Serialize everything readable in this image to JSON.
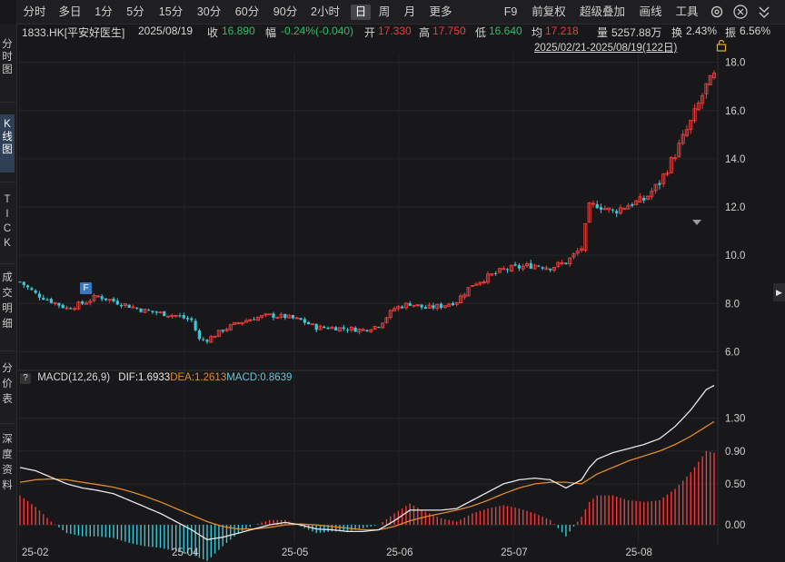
{
  "toolbar": {
    "items": [
      "分时",
      "多日",
      "1分",
      "5分",
      "15分",
      "30分",
      "60分",
      "90分",
      "2小时",
      "日",
      "周",
      "月",
      "更多"
    ],
    "selected": "日",
    "right_items": [
      "F9",
      "前复权",
      "超级叠加",
      "画线",
      "工具"
    ]
  },
  "sidebar": {
    "items": [
      "分时图",
      "K线图",
      "TICK",
      "成交明细",
      "分价表",
      "深度资料"
    ],
    "selected": "K线图"
  },
  "quote": {
    "symbol": "1833.HK[平安好医生]",
    "date": "2025/08/19",
    "close_label": "收",
    "close": "16.890",
    "change_label": "幅",
    "change": "-0.24%(-0.040)",
    "open_label": "开",
    "open": "17.330",
    "high_label": "高",
    "high": "17.750",
    "low_label": "低",
    "low": "16.640",
    "avg_label": "均",
    "avg": "17.218",
    "volume_label": "量",
    "volume": "5257.88万",
    "turnover_label": "换",
    "turnover": "2.43%",
    "amplitude_label": "振",
    "amplitude": "6.56%"
  },
  "range_text": "2025/02/21-2025/08/19(122日)",
  "marker_label": "F",
  "macd": {
    "help": "?",
    "title": "MACD(12,26,9)",
    "dif": "DIF:1.6933",
    "dea": "DEA:1.2613",
    "macd": "MACD:0.8639"
  },
  "colors": {
    "up": "#ef3b3b",
    "down": "#3ec6d6",
    "dif": "#e8e8e8",
    "dea": "#e08a2c",
    "bg": "#18181a"
  },
  "chart_data": {
    "type": "candlestick",
    "price_axis": {
      "ticks": [
        6.0,
        8.0,
        10.0,
        12.0,
        14.0,
        16.0,
        18.0
      ],
      "labels": [
        "6.0",
        "8.0",
        "10.0",
        "12.0",
        "14.0",
        "16.0",
        "18.0"
      ]
    },
    "x_labels": [
      "25-02",
      "25-04",
      "25-05",
      "25-06",
      "25-07",
      "25-08"
    ],
    "macd_axis": {
      "ticks": [
        0,
        0.5,
        0.9,
        1.3
      ],
      "labels": [
        "0.00",
        "0.50",
        "0.90",
        "1.30"
      ]
    },
    "price_path": [
      [
        0,
        8.9
      ],
      [
        4,
        8.4
      ],
      [
        8,
        8.1
      ],
      [
        12,
        7.8
      ],
      [
        16,
        8.0
      ],
      [
        20,
        8.3
      ],
      [
        24,
        8.1
      ],
      [
        28,
        7.9
      ],
      [
        32,
        7.7
      ],
      [
        36,
        7.6
      ],
      [
        40,
        7.5
      ],
      [
        44,
        7.3
      ],
      [
        46,
        6.5
      ],
      [
        48,
        6.5
      ],
      [
        52,
        6.9
      ],
      [
        56,
        7.2
      ],
      [
        60,
        7.4
      ],
      [
        64,
        7.5
      ],
      [
        68,
        7.45
      ],
      [
        72,
        7.3
      ],
      [
        76,
        7.0
      ],
      [
        80,
        7.0
      ],
      [
        84,
        6.95
      ],
      [
        88,
        6.9
      ],
      [
        92,
        7.1
      ],
      [
        96,
        7.8
      ],
      [
        100,
        8.0
      ],
      [
        104,
        7.8
      ],
      [
        108,
        7.9
      ],
      [
        112,
        8.1
      ],
      [
        116,
        8.8
      ],
      [
        120,
        9.1
      ],
      [
        124,
        9.4
      ],
      [
        128,
        9.5
      ],
      [
        132,
        9.6
      ],
      [
        136,
        9.5
      ],
      [
        140,
        9.7
      ],
      [
        144,
        10.3
      ],
      [
        146,
        12.0
      ],
      [
        148,
        12.1
      ],
      [
        152,
        11.8
      ],
      [
        156,
        12.1
      ],
      [
        160,
        12.3
      ],
      [
        164,
        13.0
      ],
      [
        168,
        14.2
      ],
      [
        172,
        15.5
      ],
      [
        176,
        17.0
      ],
      [
        178,
        17.4
      ]
    ],
    "dif_path": [
      [
        0,
        0.7
      ],
      [
        4,
        0.66
      ],
      [
        8,
        0.58
      ],
      [
        12,
        0.5
      ],
      [
        16,
        0.45
      ],
      [
        20,
        0.42
      ],
      [
        24,
        0.38
      ],
      [
        28,
        0.3
      ],
      [
        32,
        0.22
      ],
      [
        36,
        0.14
      ],
      [
        40,
        0.04
      ],
      [
        44,
        -0.06
      ],
      [
        48,
        -0.18
      ],
      [
        52,
        -0.15
      ],
      [
        56,
        -0.1
      ],
      [
        60,
        -0.05
      ],
      [
        64,
        0.0
      ],
      [
        68,
        0.03
      ],
      [
        72,
        0.0
      ],
      [
        76,
        -0.05
      ],
      [
        80,
        -0.06
      ],
      [
        84,
        -0.08
      ],
      [
        88,
        -0.08
      ],
      [
        92,
        -0.06
      ],
      [
        96,
        0.05
      ],
      [
        100,
        0.18
      ],
      [
        104,
        0.18
      ],
      [
        108,
        0.18
      ],
      [
        112,
        0.2
      ],
      [
        116,
        0.3
      ],
      [
        120,
        0.4
      ],
      [
        124,
        0.5
      ],
      [
        128,
        0.55
      ],
      [
        132,
        0.57
      ],
      [
        136,
        0.55
      ],
      [
        140,
        0.45
      ],
      [
        144,
        0.55
      ],
      [
        146,
        0.7
      ],
      [
        148,
        0.8
      ],
      [
        152,
        0.88
      ],
      [
        156,
        0.93
      ],
      [
        160,
        0.98
      ],
      [
        164,
        1.05
      ],
      [
        168,
        1.2
      ],
      [
        172,
        1.4
      ],
      [
        176,
        1.65
      ],
      [
        178,
        1.7
      ]
    ],
    "dea_path": [
      [
        0,
        0.52
      ],
      [
        4,
        0.55
      ],
      [
        8,
        0.56
      ],
      [
        12,
        0.55
      ],
      [
        16,
        0.52
      ],
      [
        20,
        0.49
      ],
      [
        24,
        0.46
      ],
      [
        28,
        0.41
      ],
      [
        32,
        0.35
      ],
      [
        36,
        0.28
      ],
      [
        40,
        0.2
      ],
      [
        44,
        0.12
      ],
      [
        48,
        0.04
      ],
      [
        52,
        -0.02
      ],
      [
        56,
        -0.05
      ],
      [
        60,
        -0.05
      ],
      [
        64,
        -0.03
      ],
      [
        68,
        0.0
      ],
      [
        72,
        0.01
      ],
      [
        76,
        0.0
      ],
      [
        80,
        -0.02
      ],
      [
        84,
        -0.04
      ],
      [
        88,
        -0.06
      ],
      [
        92,
        -0.06
      ],
      [
        96,
        -0.02
      ],
      [
        100,
        0.05
      ],
      [
        104,
        0.1
      ],
      [
        108,
        0.14
      ],
      [
        112,
        0.18
      ],
      [
        116,
        0.23
      ],
      [
        120,
        0.3
      ],
      [
        124,
        0.38
      ],
      [
        128,
        0.45
      ],
      [
        132,
        0.5
      ],
      [
        136,
        0.52
      ],
      [
        140,
        0.52
      ],
      [
        144,
        0.5
      ],
      [
        146,
        0.56
      ],
      [
        148,
        0.62
      ],
      [
        152,
        0.7
      ],
      [
        156,
        0.78
      ],
      [
        160,
        0.84
      ],
      [
        164,
        0.9
      ],
      [
        168,
        0.98
      ],
      [
        172,
        1.08
      ],
      [
        176,
        1.2
      ],
      [
        178,
        1.26
      ]
    ]
  }
}
